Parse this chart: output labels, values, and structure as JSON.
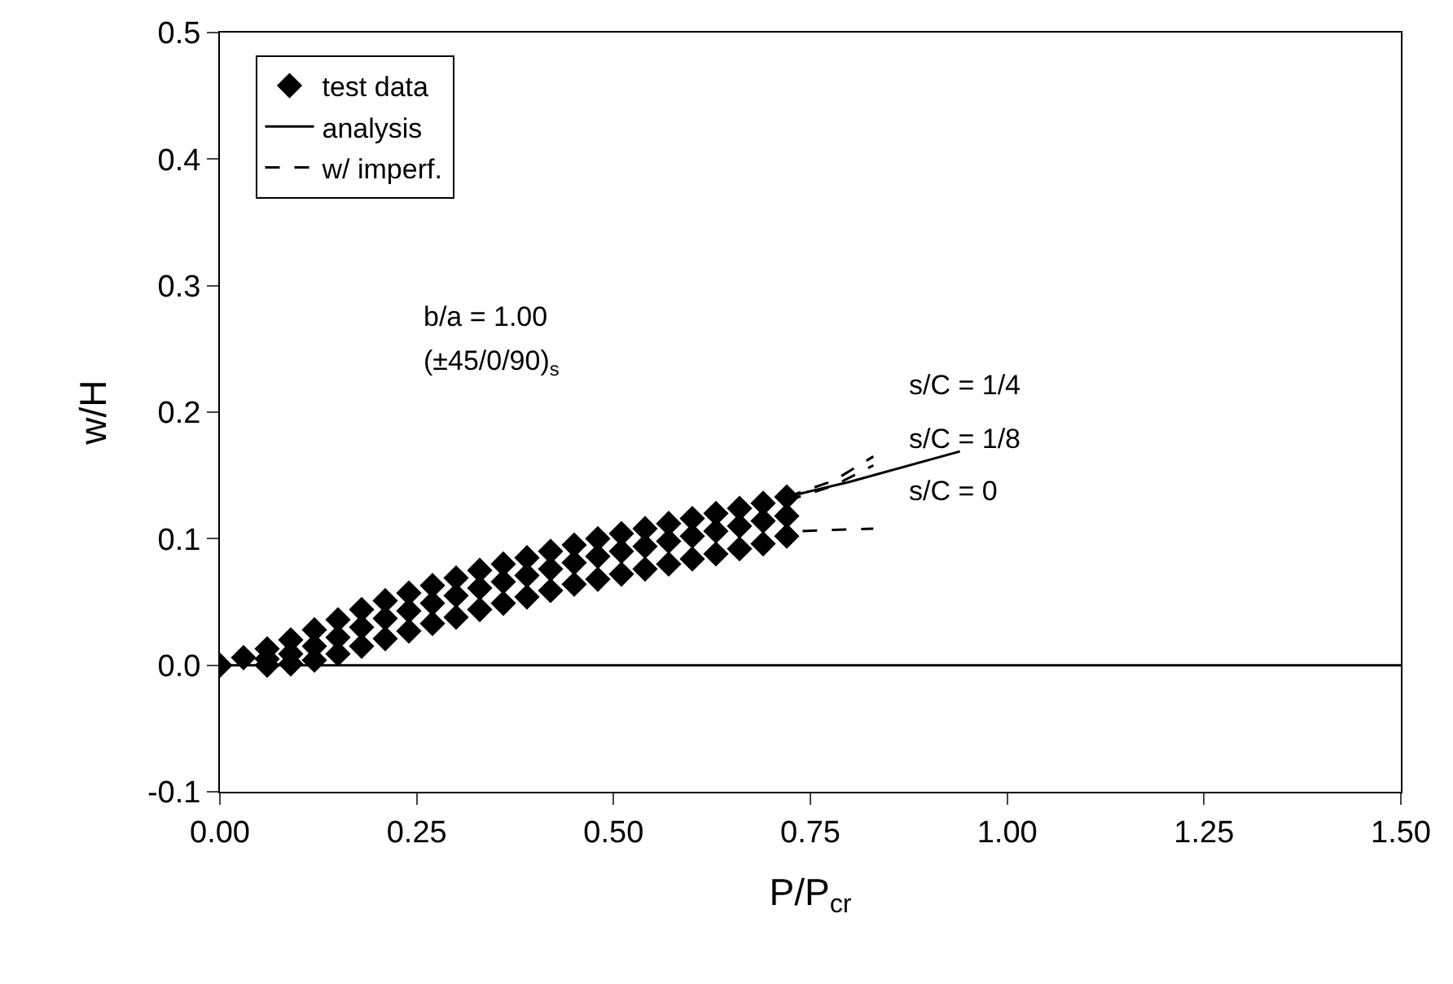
{
  "chart_data": {
    "type": "scatter",
    "xlabel": "P/P$_{cr}$",
    "ylabel": "w/H",
    "xlim": [
      0,
      1.5
    ],
    "xticks": [
      {
        "value": 0,
        "label": "0.00"
      },
      {
        "value": 0.25,
        "label": "0.25"
      },
      {
        "value": 0.5,
        "label": "0.50"
      },
      {
        "value": 0.75,
        "label": "0.75"
      },
      {
        "value": 1,
        "label": "1.00"
      },
      {
        "value": 1.25,
        "label": "1.25"
      },
      {
        "value": 1.5,
        "label": "1.50"
      }
    ],
    "ylim": [
      -0.1,
      0.5
    ],
    "yticks": [
      {
        "value": -0.1,
        "label": "-0.1"
      },
      {
        "value": 0,
        "label": "0.0"
      },
      {
        "value": 0.1,
        "label": "0.1"
      },
      {
        "value": 0.2,
        "label": "0.2"
      },
      {
        "value": 0.3,
        "label": "0.3"
      },
      {
        "value": 0.4,
        "label": "0.4"
      },
      {
        "value": 0.5,
        "label": "0.5"
      }
    ],
    "grid": false,
    "legend": "top left",
    "ref_lines": [
      {
        "axis": "y",
        "value": 0,
        "color": "#000000"
      }
    ],
    "annotations": [
      "b/a = 1.00",
      "(±45/0/90)$_{s}$",
      "s/C = 1/4",
      "s/C = 1/8",
      "s/C = 0"
    ],
    "series": [
      {
        "name": "test data",
        "type": "scatter",
        "marker": "diamond",
        "color": "#000000",
        "x": [
          0,
          0.03,
          0.06,
          0.09,
          0.12,
          0.15,
          0.18,
          0.21,
          0.24,
          0.27,
          0.3,
          0.33,
          0.36,
          0.39,
          0.42,
          0.45,
          0.48,
          0.51,
          0.54,
          0.57,
          0.6,
          0.63,
          0.66,
          0.69,
          0.72,
          0.06,
          0.09,
          0.12,
          0.15,
          0.18,
          0.21,
          0.24,
          0.27,
          0.3,
          0.33,
          0.36,
          0.39,
          0.42,
          0.45,
          0.48,
          0.51,
          0.54,
          0.57,
          0.6,
          0.63,
          0.66,
          0.69,
          0.72,
          0.06,
          0.09,
          0.12,
          0.15,
          0.18,
          0.21,
          0.24,
          0.27,
          0.3,
          0.33,
          0.36,
          0.39,
          0.42,
          0.45,
          0.48,
          0.51,
          0.54,
          0.57,
          0.6,
          0.63,
          0.66,
          0.69,
          0.72
        ],
        "values": [
          0,
          0.006,
          0.013,
          0.02,
          0.028,
          0.036,
          0.044,
          0.051,
          0.057,
          0.063,
          0.069,
          0.075,
          0.08,
          0.085,
          0.09,
          0.095,
          0.1,
          0.104,
          0.108,
          0.112,
          0.116,
          0.12,
          0.124,
          0.128,
          0.133,
          0.005,
          0.009,
          0.015,
          0.022,
          0.03,
          0.037,
          0.043,
          0.049,
          0.055,
          0.061,
          0.066,
          0.071,
          0.076,
          0.081,
          0.086,
          0.09,
          0.094,
          0.098,
          0.102,
          0.106,
          0.11,
          0.114,
          0.118,
          0,
          0.001,
          0.004,
          0.009,
          0.015,
          0.021,
          0.027,
          0.033,
          0.038,
          0.044,
          0.049,
          0.054,
          0.059,
          0.064,
          0.068,
          0.072,
          0.076,
          0.08,
          0.084,
          0.088,
          0.092,
          0.096,
          0.102
        ]
      },
      {
        "name": "analysis",
        "type": "line",
        "line_style": "solid",
        "marker": "none",
        "color": "#000000",
        "x": [
          0.72,
          0.8,
          0.94
        ],
        "values": [
          0.133,
          0.145,
          0.169
        ]
      },
      {
        "name": "w/ imperf.",
        "type": "line",
        "line_style": "dashed",
        "marker": "none",
        "color": "#000000",
        "x": [
          0.72,
          0.78,
          0.83,
          null,
          0.72,
          0.78,
          0.83,
          null,
          0.74,
          0.78,
          0.83
        ],
        "values": [
          0.133,
          0.146,
          0.165,
          null,
          0.13,
          0.142,
          0.158,
          null,
          0.106,
          0.107,
          0.108
        ]
      }
    ]
  }
}
